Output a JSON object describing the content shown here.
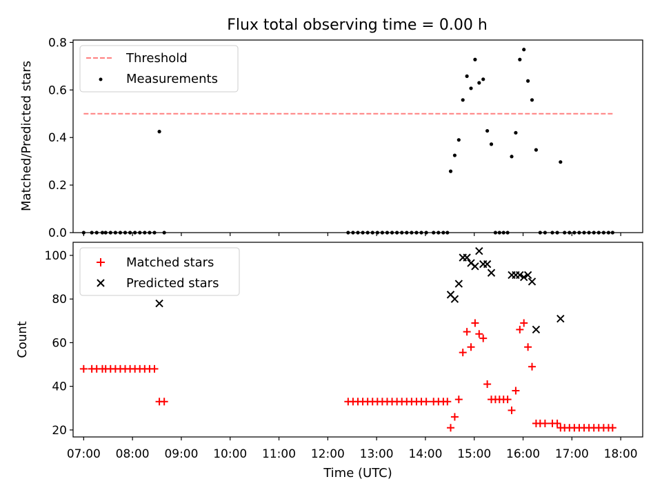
{
  "chart_data": [
    {
      "type": "scatter",
      "title": "Flux total observing time = 0.00 h",
      "ylabel": "Matched/Predicted stars",
      "xlim": [
        "06:47",
        "18:27"
      ],
      "ylim": [
        0,
        0.81
      ],
      "yticks": [
        "0.0",
        "0.2",
        "0.4",
        "0.6",
        "0.8"
      ],
      "threshold": {
        "name": "Threshold",
        "value": 0.5,
        "x_start": "07:00",
        "x_end": "17:50",
        "color": "#ff7f7f",
        "style": "dashed"
      },
      "legend": {
        "position": "upper-left",
        "entries": [
          "Threshold",
          "Measurements"
        ]
      },
      "series": [
        {
          "name": "Measurements",
          "color": "#000000",
          "marker": "dot",
          "points": [
            [
              "07:00",
              0
            ],
            [
              "07:10",
              0
            ],
            [
              "07:16",
              0
            ],
            [
              "07:23",
              0
            ],
            [
              "07:27",
              0
            ],
            [
              "07:33",
              0
            ],
            [
              "07:39",
              0
            ],
            [
              "07:45",
              0
            ],
            [
              "07:51",
              0
            ],
            [
              "07:57",
              0
            ],
            [
              "08:03",
              0
            ],
            [
              "08:09",
              0
            ],
            [
              "08:15",
              0
            ],
            [
              "08:21",
              0
            ],
            [
              "08:27",
              0
            ],
            [
              "08:33",
              0.425
            ],
            [
              "08:39",
              0
            ],
            [
              "12:25",
              0
            ],
            [
              "12:31",
              0
            ],
            [
              "12:37",
              0
            ],
            [
              "12:43",
              0
            ],
            [
              "12:49",
              0
            ],
            [
              "12:55",
              0
            ],
            [
              "13:01",
              0
            ],
            [
              "13:07",
              0
            ],
            [
              "13:13",
              0
            ],
            [
              "13:19",
              0
            ],
            [
              "13:25",
              0
            ],
            [
              "13:31",
              0
            ],
            [
              "13:37",
              0
            ],
            [
              "13:43",
              0
            ],
            [
              "13:49",
              0
            ],
            [
              "13:55",
              0
            ],
            [
              "14:01",
              0
            ],
            [
              "14:10",
              0
            ],
            [
              "14:16",
              0
            ],
            [
              "14:22",
              0
            ],
            [
              "14:27",
              0
            ],
            [
              "14:31",
              0.258
            ],
            [
              "14:36",
              0.325
            ],
            [
              "14:41",
              0.39
            ],
            [
              "14:46",
              0.558
            ],
            [
              "14:51",
              0.658
            ],
            [
              "14:56",
              0.607
            ],
            [
              "15:01",
              0.728
            ],
            [
              "15:06",
              0.63
            ],
            [
              "15:11",
              0.645
            ],
            [
              "15:16",
              0.428
            ],
            [
              "15:21",
              0.372
            ],
            [
              "15:26",
              0
            ],
            [
              "15:31",
              0
            ],
            [
              "15:36",
              0
            ],
            [
              "15:41",
              0
            ],
            [
              "15:46",
              0.32
            ],
            [
              "15:51",
              0.42
            ],
            [
              "15:56",
              0.728
            ],
            [
              "16:01",
              0.77
            ],
            [
              "16:06",
              0.638
            ],
            [
              "16:11",
              0.558
            ],
            [
              "16:16",
              0.348
            ],
            [
              "16:21",
              0
            ],
            [
              "16:27",
              0
            ],
            [
              "16:36",
              0
            ],
            [
              "16:42",
              0
            ],
            [
              "16:46",
              0.297
            ],
            [
              "16:51",
              0
            ],
            [
              "16:57",
              0
            ],
            [
              "17:03",
              0
            ],
            [
              "17:09",
              0
            ],
            [
              "17:15",
              0
            ],
            [
              "17:21",
              0
            ],
            [
              "17:27",
              0
            ],
            [
              "17:33",
              0
            ],
            [
              "17:39",
              0
            ],
            [
              "17:45",
              0
            ],
            [
              "17:50",
              0
            ]
          ]
        }
      ]
    },
    {
      "type": "scatter",
      "xlabel": "Time (UTC)",
      "ylabel": "Count",
      "xlim": [
        "06:47",
        "18:27"
      ],
      "ylim": [
        16.8,
        106
      ],
      "yticks": [
        "20",
        "40",
        "60",
        "80",
        "100"
      ],
      "xticks": [
        "07:00",
        "08:00",
        "09:00",
        "10:00",
        "11:00",
        "12:00",
        "13:00",
        "14:00",
        "15:00",
        "16:00",
        "17:00",
        "18:00"
      ],
      "legend": {
        "position": "upper-left",
        "entries": [
          "Matched stars",
          "Predicted stars"
        ]
      },
      "series": [
        {
          "name": "Matched stars",
          "color": "#ff0000",
          "marker": "plus",
          "points": [
            [
              "07:00",
              48
            ],
            [
              "07:10",
              48
            ],
            [
              "07:16",
              48
            ],
            [
              "07:23",
              48
            ],
            [
              "07:27",
              48
            ],
            [
              "07:33",
              48
            ],
            [
              "07:39",
              48
            ],
            [
              "07:45",
              48
            ],
            [
              "07:51",
              48
            ],
            [
              "07:57",
              48
            ],
            [
              "08:03",
              48
            ],
            [
              "08:09",
              48
            ],
            [
              "08:15",
              48
            ],
            [
              "08:21",
              48
            ],
            [
              "08:27",
              48
            ],
            [
              "08:33",
              33
            ],
            [
              "08:39",
              33
            ],
            [
              "12:25",
              33
            ],
            [
              "12:31",
              33
            ],
            [
              "12:37",
              33
            ],
            [
              "12:43",
              33
            ],
            [
              "12:49",
              33
            ],
            [
              "12:55",
              33
            ],
            [
              "13:01",
              33
            ],
            [
              "13:07",
              33
            ],
            [
              "13:13",
              33
            ],
            [
              "13:19",
              33
            ],
            [
              "13:25",
              33
            ],
            [
              "13:31",
              33
            ],
            [
              "13:37",
              33
            ],
            [
              "13:43",
              33
            ],
            [
              "13:49",
              33
            ],
            [
              "13:55",
              33
            ],
            [
              "14:01",
              33
            ],
            [
              "14:10",
              33
            ],
            [
              "14:16",
              33
            ],
            [
              "14:22",
              33
            ],
            [
              "14:27",
              33
            ],
            [
              "14:31",
              21
            ],
            [
              "14:36",
              26
            ],
            [
              "14:41",
              34
            ],
            [
              "14:46",
              55.5
            ],
            [
              "14:51",
              65
            ],
            [
              "14:56",
              58
            ],
            [
              "15:01",
              69
            ],
            [
              "15:06",
              64
            ],
            [
              "15:11",
              62
            ],
            [
              "15:16",
              41
            ],
            [
              "15:21",
              34
            ],
            [
              "15:26",
              34
            ],
            [
              "15:31",
              34
            ],
            [
              "15:36",
              34
            ],
            [
              "15:41",
              34
            ],
            [
              "15:46",
              29
            ],
            [
              "15:51",
              38
            ],
            [
              "15:56",
              66
            ],
            [
              "16:01",
              69
            ],
            [
              "16:06",
              58
            ],
            [
              "16:11",
              49
            ],
            [
              "16:16",
              23
            ],
            [
              "16:21",
              23
            ],
            [
              "16:27",
              23
            ],
            [
              "16:36",
              23
            ],
            [
              "16:42",
              23
            ],
            [
              "16:46",
              21
            ],
            [
              "16:51",
              21
            ],
            [
              "16:57",
              21
            ],
            [
              "17:03",
              21
            ],
            [
              "17:09",
              21
            ],
            [
              "17:15",
              21
            ],
            [
              "17:21",
              21
            ],
            [
              "17:27",
              21
            ],
            [
              "17:33",
              21
            ],
            [
              "17:39",
              21
            ],
            [
              "17:45",
              21
            ],
            [
              "17:50",
              21
            ]
          ]
        },
        {
          "name": "Predicted stars",
          "color": "#000000",
          "marker": "x",
          "points": [
            [
              "08:33",
              78
            ],
            [
              "14:31",
              82
            ],
            [
              "14:36",
              80
            ],
            [
              "14:41",
              87
            ],
            [
              "14:46",
              99
            ],
            [
              "14:51",
              99
            ],
            [
              "14:56",
              96.5
            ],
            [
              "15:01",
              95
            ],
            [
              "15:06",
              102
            ],
            [
              "15:11",
              96
            ],
            [
              "15:16",
              96
            ],
            [
              "15:21",
              92
            ],
            [
              "15:46",
              91
            ],
            [
              "15:51",
              91
            ],
            [
              "15:56",
              91
            ],
            [
              "16:01",
              90
            ],
            [
              "16:06",
              91
            ],
            [
              "16:11",
              88
            ],
            [
              "16:16",
              66
            ],
            [
              "16:46",
              71
            ]
          ]
        }
      ]
    }
  ]
}
